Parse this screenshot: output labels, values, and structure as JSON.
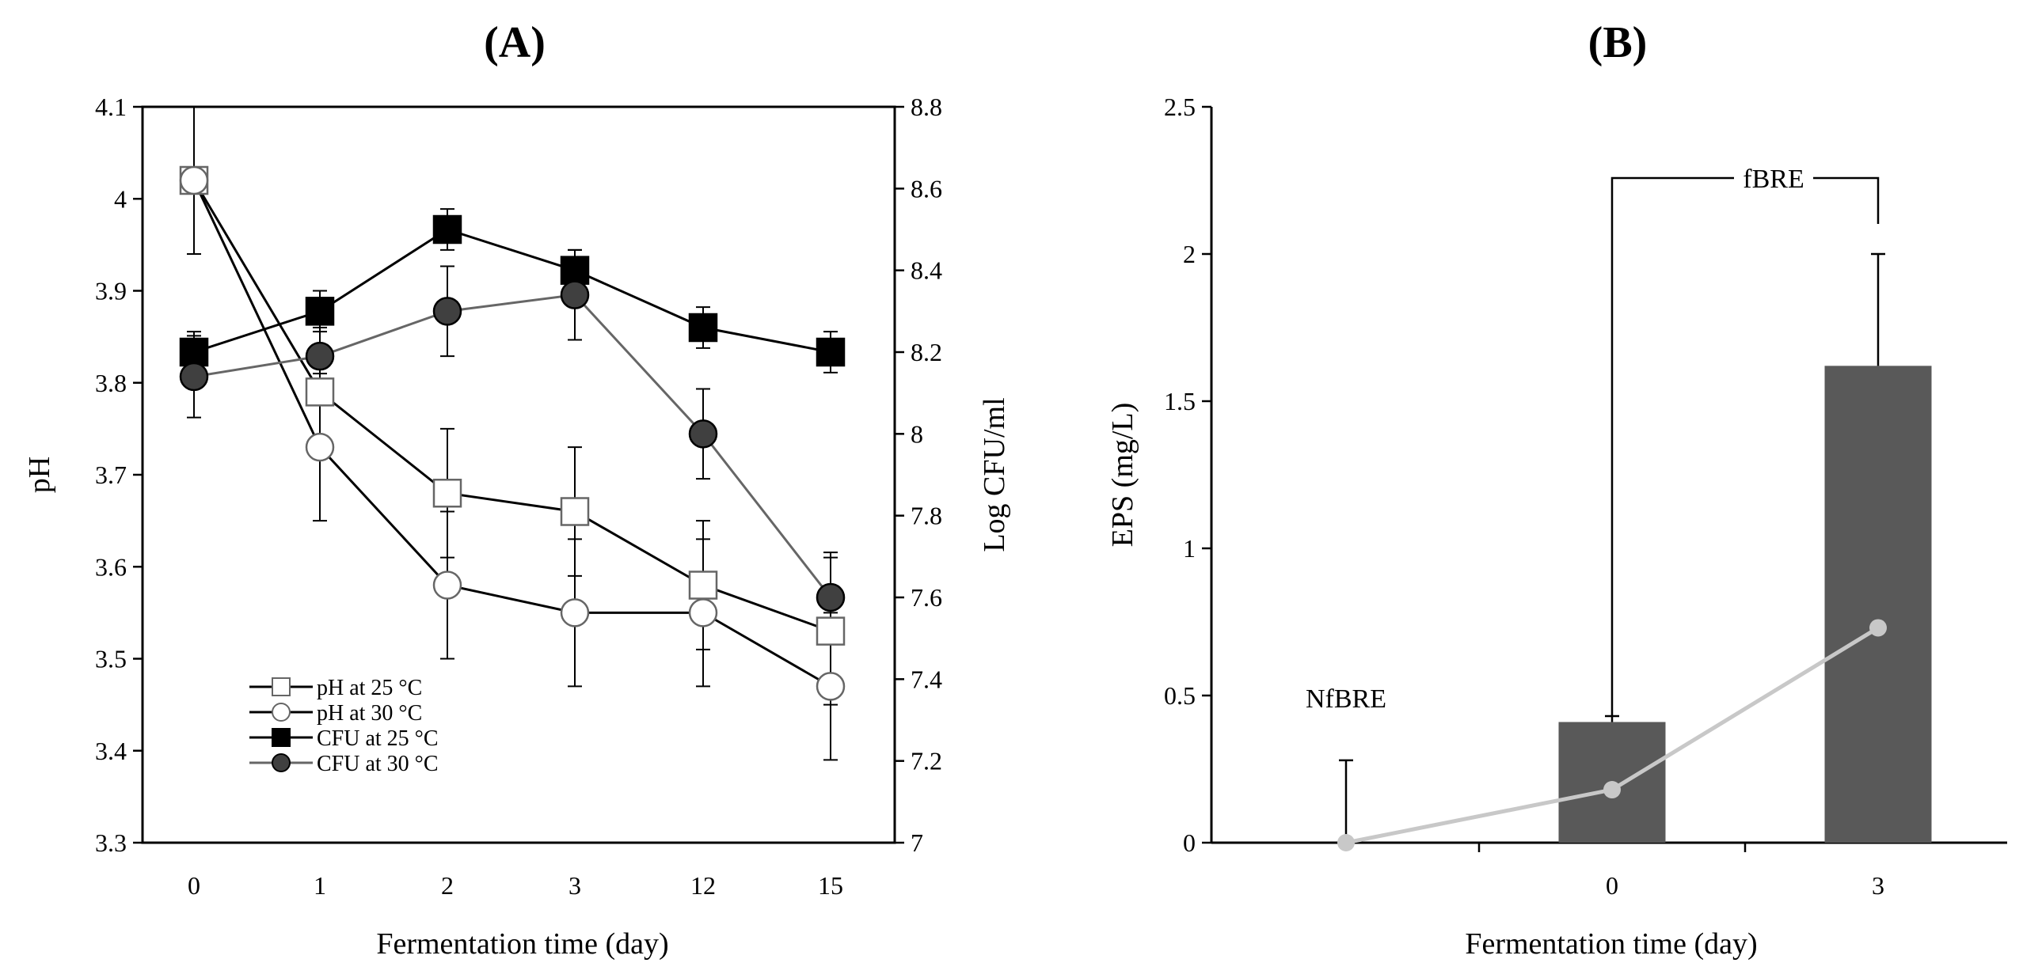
{
  "chart_data": [
    {
      "panel": "(A)",
      "type": "line",
      "title": "(A)",
      "xlabel": "Fermentation time (day)",
      "ylabel": "pH",
      "y2label": "Log CFU/ml",
      "categories": [
        "0",
        "1",
        "2",
        "3",
        "12",
        "15"
      ],
      "ylim": [
        3.3,
        4.1
      ],
      "y2lim": [
        7,
        8.8
      ],
      "yticks": [
        "4.1",
        "4",
        "3.9",
        "3.8",
        "3.7",
        "3.6",
        "3.5",
        "3.4",
        "3.3"
      ],
      "y2ticks": [
        "8.8",
        "8.6",
        "8.4",
        "8.2",
        "8",
        "7.8",
        "7.6",
        "7.4",
        "7.2",
        "7"
      ],
      "legend": "lower-left",
      "series": [
        {
          "name": "pH at 25 °C",
          "axis": "left",
          "marker": "square",
          "fill": "#ffffff",
          "line": "#000000",
          "values": [
            4.02,
            3.79,
            3.68,
            3.66,
            3.58,
            3.53
          ],
          "errors": [
            0.08,
            0.05,
            0.07,
            0.07,
            0.07,
            0.08
          ]
        },
        {
          "name": "pH at 30 °C",
          "axis": "left",
          "marker": "circle",
          "fill": "#ffffff",
          "line": "#000000",
          "values": [
            4.02,
            3.73,
            3.58,
            3.55,
            3.55,
            3.47
          ],
          "errors": [
            0.08,
            0.08,
            0.08,
            0.08,
            0.08,
            0.08
          ]
        },
        {
          "name": "CFU at 25 °C",
          "axis": "right",
          "marker": "square",
          "fill": "#000000",
          "line": "#000000",
          "values": [
            8.2,
            8.3,
            8.5,
            8.4,
            8.26,
            8.2
          ],
          "errors": [
            0.05,
            0.05,
            0.05,
            0.05,
            0.05,
            0.05
          ]
        },
        {
          "name": "CFU at 30 °C",
          "axis": "right",
          "marker": "circle",
          "fill": "#404040",
          "line": "#666666",
          "values": [
            8.14,
            8.19,
            8.3,
            8.34,
            8.0,
            7.6
          ],
          "errors": [
            0.1,
            0.07,
            0.11,
            0.11,
            0.11,
            0.11
          ]
        }
      ]
    },
    {
      "panel": "(B)",
      "type": "bar",
      "title": "(B)",
      "xlabel": "Fermentation time (day)",
      "ylabel": "EPS (mg/L)",
      "ylim": [
        0,
        2.5
      ],
      "yticks": [
        "2.5",
        "2",
        "1.5",
        "1",
        "0.5",
        "0"
      ],
      "categories": [
        "NfBRE",
        "0",
        "3"
      ],
      "tick_labels": [
        "",
        "0",
        "3"
      ],
      "values": [
        0,
        0.41,
        1.62
      ],
      "errors": [
        0.28,
        0.02,
        0.38
      ],
      "bar_color": "#595959",
      "line_values": [
        0,
        0.18,
        0.73
      ],
      "line_color": "#c8c8c8",
      "annotations": {
        "nfbre": "NfBRE",
        "fbre": "fBRE"
      }
    }
  ]
}
